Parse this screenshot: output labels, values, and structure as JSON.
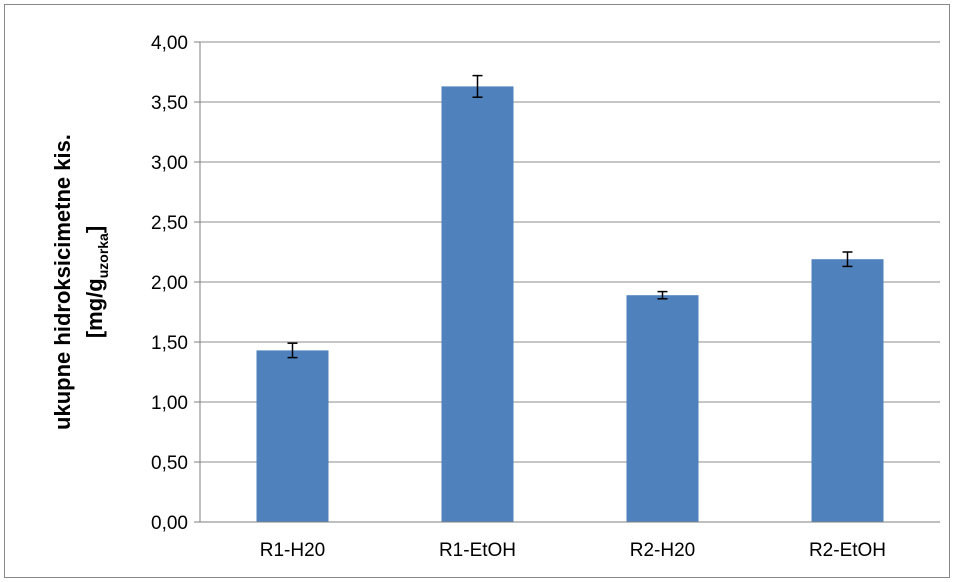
{
  "chart_data": {
    "type": "bar",
    "categories": [
      "R1-H20",
      "R1-EtOH",
      "R2-H20",
      "R2-EtOH"
    ],
    "values": [
      1.43,
      3.63,
      1.89,
      2.19
    ],
    "errors": [
      0.06,
      0.09,
      0.03,
      0.06
    ],
    "ylim": [
      0,
      4
    ],
    "yticks": [
      "0,00",
      "0,50",
      "1,00",
      "1,50",
      "2,00",
      "2,50",
      "3,00",
      "3,50",
      "4,00"
    ],
    "ylabel": {
      "line1": "ukupne hidroksicimetne kis.",
      "line2_prefix": "[mg/g",
      "line2_sub": "uzorka",
      "line2_suffix": "]"
    },
    "grid": true,
    "legend": "none",
    "colors": {
      "bar": "#4F81BD",
      "grid": "#8C8C8C",
      "axis": "#7F7F7F",
      "error": "#000000"
    }
  }
}
